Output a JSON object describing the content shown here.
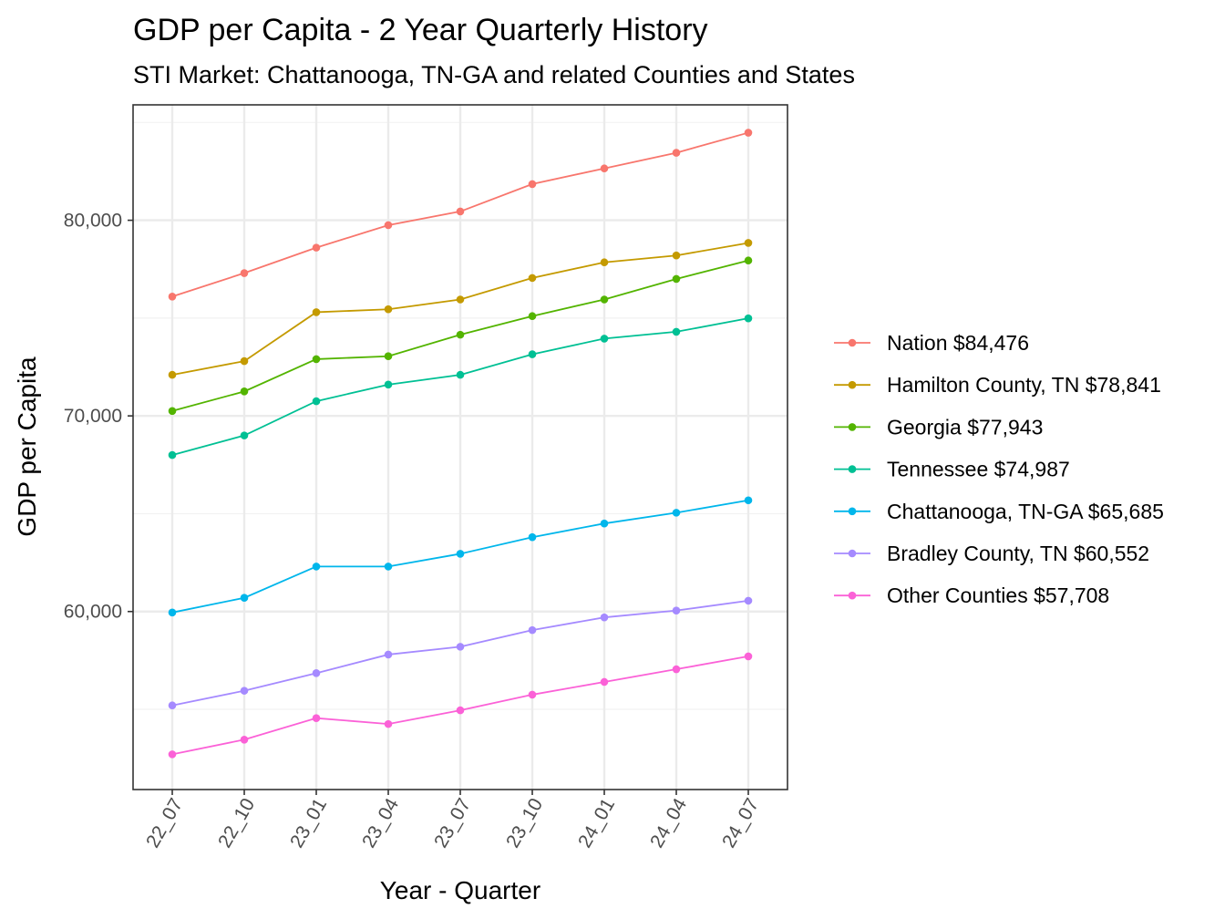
{
  "chart_data": {
    "type": "line",
    "title": "GDP per Capita - 2 Year Quarterly History",
    "subtitle": "STI Market: Chattanooga, TN-GA and related Counties and States",
    "xlabel": "Year - Quarter",
    "ylabel": "GDP per Capita",
    "categories": [
      "22_07",
      "22_10",
      "23_01",
      "23_04",
      "23_07",
      "23_10",
      "24_01",
      "24_04",
      "24_07"
    ],
    "ylim": [
      50900,
      85900
    ],
    "yticks": [
      60000,
      70000,
      80000
    ],
    "ytick_labels": [
      "60,000",
      "70,000",
      "80,000"
    ],
    "yminor": [
      55000,
      65000,
      75000,
      85000
    ],
    "grid": true,
    "legend_position": "right",
    "series": [
      {
        "name": "Nation $84,476",
        "color": "#F8766D",
        "values": [
          76100,
          77300,
          78600,
          79750,
          80450,
          81850,
          82650,
          83450,
          84476
        ]
      },
      {
        "name": "Hamilton County, TN $78,841",
        "color": "#C49A00",
        "values": [
          72100,
          72800,
          75300,
          75450,
          75950,
          77050,
          77850,
          78200,
          78841
        ]
      },
      {
        "name": "Georgia $77,943",
        "color": "#53B400",
        "values": [
          70250,
          71250,
          72900,
          73050,
          74150,
          75100,
          75950,
          77000,
          77943
        ]
      },
      {
        "name": "Tennessee $74,987",
        "color": "#00C094",
        "values": [
          68000,
          69000,
          70750,
          71600,
          72100,
          73150,
          73950,
          74300,
          74987
        ]
      },
      {
        "name": "Chattanooga, TN-GA $65,685",
        "color": "#00B6EB",
        "values": [
          59950,
          60700,
          62300,
          62300,
          62950,
          63800,
          64500,
          65050,
          65685
        ]
      },
      {
        "name": "Bradley County, TN $60,552",
        "color": "#A58AFF",
        "values": [
          55200,
          55950,
          56850,
          57800,
          58200,
          59050,
          59700,
          60050,
          60552
        ]
      },
      {
        "name": "Other Counties $57,708",
        "color": "#FB61D7",
        "values": [
          52700,
          53450,
          54550,
          54250,
          54950,
          55750,
          56400,
          57050,
          57708
        ]
      }
    ]
  }
}
